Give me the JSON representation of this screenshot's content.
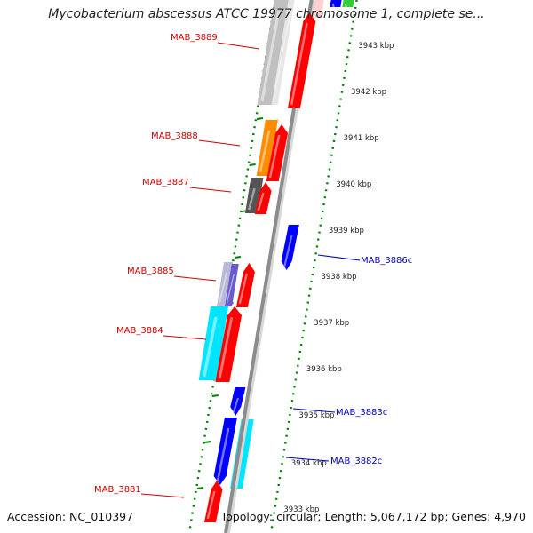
{
  "title": "Mycobacterium abscessus ATCC 19977 chromosome 1, complete se...",
  "accession": "Accession: NC_010397",
  "topology": "Topology: circular; Length: 5,067,172 bp; Genes: 4,970",
  "colors": {
    "forward_cds": "#ff0000",
    "reverse_cds": "#0000ff",
    "backbone": "#8c8c8c",
    "ticks": "#008000",
    "forward_label": "#d40000",
    "reverse_label": "#0000c0"
  },
  "scale_labels": [
    "3943 kbp",
    "3942 kbp",
    "3941 kbp",
    "3940 kbp",
    "3939 kbp",
    "3938 kbp",
    "3937 kbp",
    "3936 kbp",
    "3935 kbp",
    "3934 kbp",
    "3933 kbp"
  ],
  "gene_labels": {
    "forward": [
      "MAB_3889",
      "MAB_3888",
      "MAB_3887",
      "MAB_3885",
      "MAB_3884",
      "MAB_3881"
    ],
    "reverse": [
      "MAB_3886c",
      "MAB_3883c",
      "MAB_3882c"
    ]
  }
}
